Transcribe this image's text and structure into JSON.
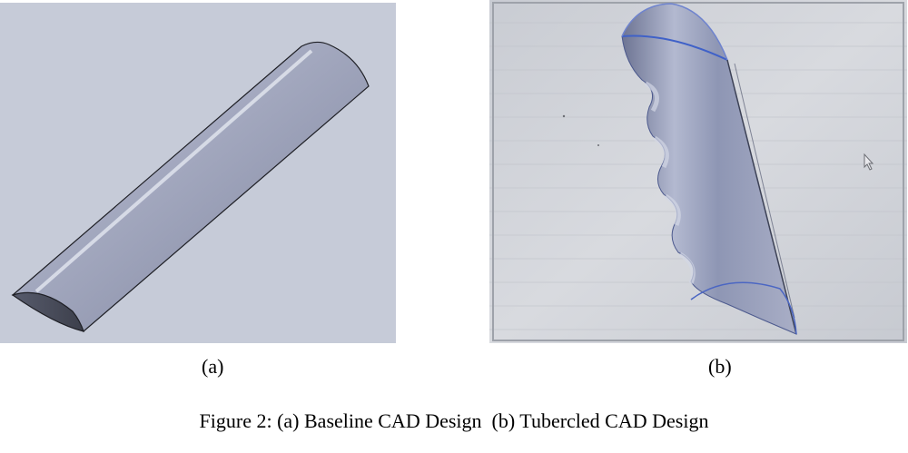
{
  "figure": {
    "subfigures": [
      {
        "label": "(a)",
        "image": "baseline-cad-render"
      },
      {
        "label": "(b)",
        "image": "tubercled-cad-photo"
      }
    ],
    "caption": "Figure 2: (a) Baseline CAD Design  (b) Tubercled CAD Design"
  },
  "colors": {
    "cad_viewport_background": "#c6cbd8",
    "photo_background": "#d3d6dc",
    "blade_surface": "#9aa1b9",
    "edge_highlight": "#3f61c8"
  }
}
